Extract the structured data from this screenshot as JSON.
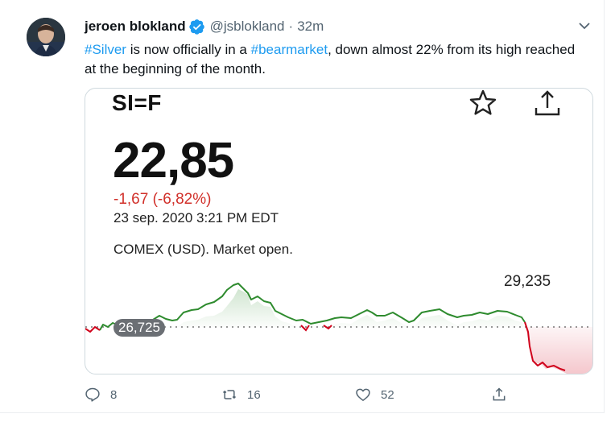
{
  "tweet": {
    "author_name": "jeroen blokland",
    "handle": "@jsblokland",
    "separator": "·",
    "timestamp": "32m",
    "text_parts": {
      "hashtag_silver": "#Silver",
      "part1": " is now officially in a ",
      "hashtag_bearmarket": "#bearmarket",
      "part2": ", down almost 22% from its high reached at the beginning of the month."
    }
  },
  "card": {
    "symbol": "SI=F",
    "price": "22,85",
    "change": "-1,67 (-6,82%)",
    "date": "23 sep. 2020 3:21 PM EDT",
    "market_status": "COMEX (USD). Market open.",
    "high_label": "29,235",
    "prev_close_label": "26,725"
  },
  "actions": {
    "reply_count": "8",
    "retweet_count": "16",
    "like_count": "52"
  },
  "colors": {
    "accent": "#1d9bf0",
    "negative": "#d1302a",
    "positive_line": "#2e8b2e",
    "negative_line": "#d0021b"
  },
  "icons": [
    "verified-badge-icon",
    "chevron-down-icon",
    "star-icon",
    "share-icon",
    "reply-icon",
    "retweet-icon",
    "like-icon"
  ]
}
